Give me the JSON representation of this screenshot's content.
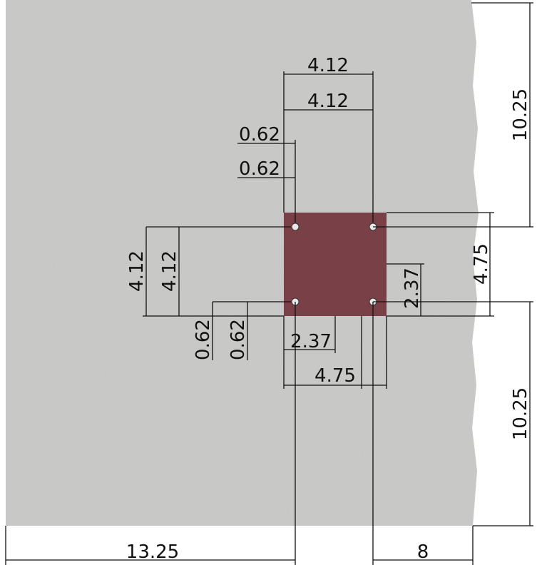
{
  "drawing": {
    "plate_color": "#7a4048",
    "concrete_color": "#c9c9c7",
    "dimensions": {
      "top_outer": "4.12",
      "top_inner": "4.12",
      "edge_top_1": "0.62",
      "edge_top_2": "0.62",
      "left_outer": "4.12",
      "left_inner": "4.12",
      "edge_bottom_1": "0.62",
      "edge_bottom_2": "0.62",
      "half_width": "2.37",
      "full_width": "4.75",
      "half_height": "2.37",
      "full_height": "4.75",
      "right_upper": "10.25",
      "right_lower": "10.25",
      "bottom_left": "13.25",
      "bottom_right": "8"
    }
  }
}
